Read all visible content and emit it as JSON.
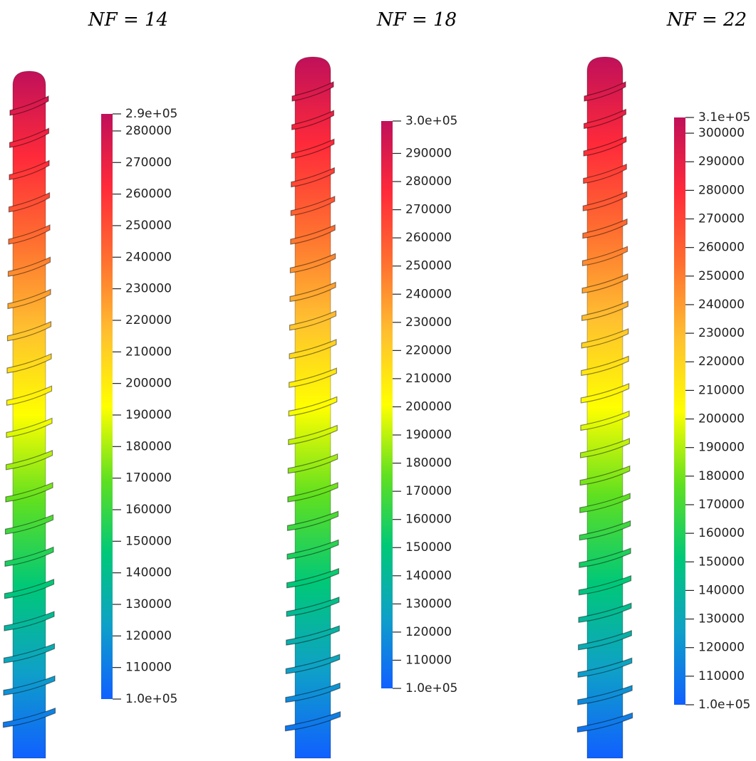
{
  "chart_data": [
    {
      "type": "colorbar",
      "title": "NF = 14",
      "ylim": [
        100000,
        285400
      ],
      "yticks": [
        {
          "value": 285400,
          "label": "2.9e+05"
        },
        280000,
        270000,
        260000,
        250000,
        240000,
        230000,
        220000,
        210000,
        200000,
        190000,
        180000,
        170000,
        160000,
        150000,
        140000,
        130000,
        120000,
        110000,
        {
          "value": 100000,
          "label": "1.0e+05"
        }
      ],
      "colormap": [
        "#1060ff",
        "#0fa0c8",
        "#00c878",
        "#60e020",
        "#ffff00",
        "#ffc030",
        "#ff7030",
        "#ff2a3a",
        "#c0105a"
      ]
    },
    {
      "type": "colorbar",
      "title": "NF = 18",
      "ylim": [
        100000,
        301500
      ],
      "yticks": [
        {
          "value": 301500,
          "label": "3.0e+05"
        },
        290000,
        280000,
        270000,
        260000,
        250000,
        240000,
        230000,
        220000,
        210000,
        200000,
        190000,
        180000,
        170000,
        160000,
        150000,
        140000,
        130000,
        120000,
        110000,
        {
          "value": 100000,
          "label": "1.0e+05"
        }
      ],
      "colormap": [
        "#1060ff",
        "#0fa0c8",
        "#00c878",
        "#60e020",
        "#ffff00",
        "#ffc030",
        "#ff7030",
        "#ff2a3a",
        "#c0105a"
      ]
    },
    {
      "type": "colorbar",
      "title": "NF = 22",
      "ylim": [
        100000,
        305500
      ],
      "yticks": [
        {
          "value": 305500,
          "label": "3.1e+05"
        },
        300000,
        290000,
        280000,
        270000,
        260000,
        250000,
        240000,
        230000,
        220000,
        210000,
        200000,
        190000,
        180000,
        170000,
        160000,
        150000,
        140000,
        130000,
        120000,
        110000,
        {
          "value": 100000,
          "label": "1.0e+05"
        }
      ],
      "colormap": [
        "#1060ff",
        "#0fa0c8",
        "#00c878",
        "#60e020",
        "#ffff00",
        "#ffc030",
        "#ff7030",
        "#ff2a3a",
        "#c0105a"
      ]
    }
  ]
}
